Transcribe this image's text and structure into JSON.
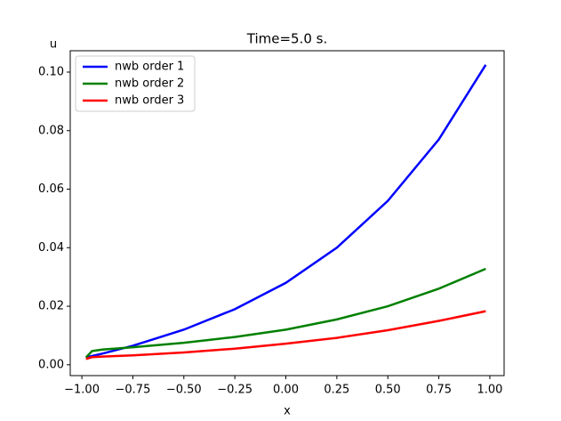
{
  "chart_data": {
    "type": "line",
    "title": "Time=5.0 s.",
    "x_label": "x",
    "y_label": "u",
    "x": [
      -0.98,
      -0.95,
      -0.9,
      -0.75,
      -0.5,
      -0.25,
      0,
      0.25,
      0.5,
      0.75,
      0.98
    ],
    "series": [
      {
        "name": "nwb order 1",
        "color": "#0000ff",
        "values": [
          0.0025,
          0.003,
          0.0038,
          0.0065,
          0.012,
          0.019,
          0.028,
          0.04,
          0.056,
          0.077,
          0.1025
        ]
      },
      {
        "name": "nwb order 2",
        "color": "#008000",
        "values": [
          0.0025,
          0.0047,
          0.0052,
          0.006,
          0.0075,
          0.0095,
          0.012,
          0.0155,
          0.02,
          0.026,
          0.0328
        ]
      },
      {
        "name": "nwb order 3",
        "color": "#ff0000",
        "values": [
          0.002,
          0.0026,
          0.0028,
          0.0032,
          0.0042,
          0.0055,
          0.0072,
          0.0092,
          0.0118,
          0.015,
          0.0183
        ]
      }
    ],
    "xlim": [
      -1.057,
      1.07
    ],
    "ylim": [
      -0.0037,
      0.1073
    ],
    "xticks": [
      {
        "value": -1,
        "label": "−1.00"
      },
      {
        "value": -0.75,
        "label": "−0.75"
      },
      {
        "value": -0.5,
        "label": "−0.50"
      },
      {
        "value": -0.25,
        "label": "−0.25"
      },
      {
        "value": 0,
        "label": "0.00"
      },
      {
        "value": 0.25,
        "label": "0.25"
      },
      {
        "value": 0.5,
        "label": "0.50"
      },
      {
        "value": 0.75,
        "label": "0.75"
      },
      {
        "value": 1,
        "label": "1.00"
      }
    ],
    "yticks": [
      {
        "value": 0,
        "label": "0.00"
      },
      {
        "value": 0.02,
        "label": "0.02"
      },
      {
        "value": 0.04,
        "label": "0.04"
      },
      {
        "value": 0.06,
        "label": "0.06"
      },
      {
        "value": 0.08,
        "label": "0.08"
      },
      {
        "value": 0.1,
        "label": "0.10"
      }
    ],
    "legend": "upper left",
    "grid": false
  }
}
